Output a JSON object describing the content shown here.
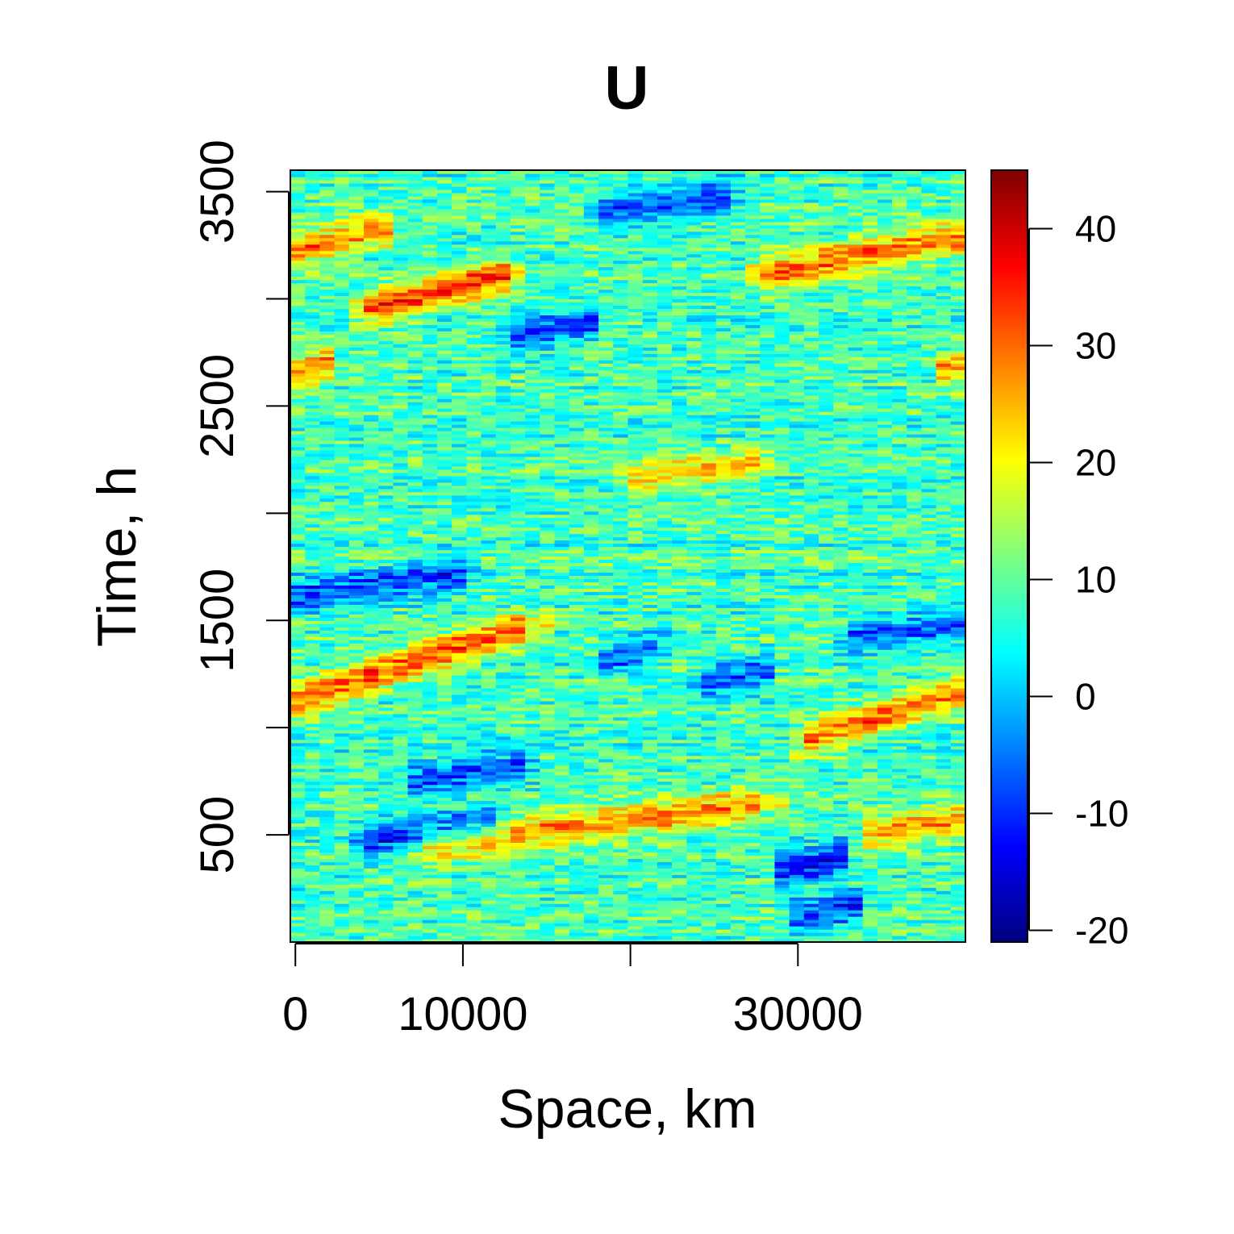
{
  "chart_data": {
    "type": "heatmap",
    "title": "U",
    "xlabel": "Space, km",
    "ylabel": "Time, h",
    "xlim": [
      -300,
      40000
    ],
    "ylim": [
      0,
      3600
    ],
    "x_ticks": [
      0,
      10000,
      20000,
      30000
    ],
    "x_tick_labels": [
      "0",
      "10000",
      "",
      "30000"
    ],
    "y_ticks": [
      500,
      1000,
      1500,
      2000,
      2500,
      3000,
      3500
    ],
    "y_tick_labels": [
      "500",
      "",
      "1500",
      "",
      "2500",
      "",
      "3500"
    ],
    "colorbar": {
      "range": [
        -21,
        45
      ],
      "ticks": [
        -20,
        -10,
        0,
        10,
        20,
        30,
        40
      ],
      "tick_labels": [
        "-20",
        "-10",
        "0",
        "10",
        "20",
        "30",
        "40"
      ],
      "colormap": [
        "#00007f",
        "#0000ff",
        "#007fff",
        "#00ffff",
        "#7fff7f",
        "#ffff00",
        "#ff7f00",
        "#ff0000",
        "#7f0000"
      ]
    },
    "grid": false,
    "legend": "right colorbar",
    "background_value": 8,
    "features": [
      {
        "kind": "red band",
        "x_start": 0,
        "t_start": 1130,
        "x_end": 14000,
        "t_end": 1480,
        "value": 34
      },
      {
        "kind": "red band",
        "x_start": 4000,
        "t_start": 2950,
        "x_end": 13000,
        "t_end": 3120,
        "value": 36
      },
      {
        "kind": "orange band",
        "x_start": 0,
        "t_start": 3220,
        "x_end": 5500,
        "t_end": 3330,
        "value": 30
      },
      {
        "kind": "orange band",
        "x_start": 28000,
        "t_start": 3120,
        "x_end": 40000,
        "t_end": 3300,
        "value": 32
      },
      {
        "kind": "orange band",
        "x_start": 30000,
        "t_start": 930,
        "x_end": 40000,
        "t_end": 1180,
        "value": 32
      },
      {
        "kind": "orange band",
        "x_start": 0,
        "t_start": 2650,
        "x_end": 2000,
        "t_end": 2700,
        "value": 30
      },
      {
        "kind": "orange band",
        "x_start": 38500,
        "t_start": 2650,
        "x_end": 40000,
        "t_end": 2700,
        "value": 29
      },
      {
        "kind": "orange streak",
        "x_start": 8000,
        "t_start": 450,
        "x_end": 28000,
        "t_end": 650,
        "value": 29
      },
      {
        "kind": "orange streak",
        "x_start": 34000,
        "t_start": 500,
        "x_end": 40000,
        "t_end": 580,
        "value": 27
      },
      {
        "kind": "orange streak",
        "x_start": 20000,
        "t_start": 2150,
        "x_end": 28000,
        "t_end": 2250,
        "value": 25
      },
      {
        "kind": "blue patch",
        "x_start": 4000,
        "t_start": 470,
        "x_end": 12000,
        "t_end": 570,
        "value": -12
      },
      {
        "kind": "blue patch",
        "x_start": 0,
        "t_start": 1620,
        "x_end": 10000,
        "t_end": 1720,
        "value": -10
      },
      {
        "kind": "blue patch",
        "x_start": 7000,
        "t_start": 750,
        "x_end": 14000,
        "t_end": 830,
        "value": -9
      },
      {
        "kind": "blue patch",
        "x_start": 18000,
        "t_start": 3400,
        "x_end": 26000,
        "t_end": 3480,
        "value": -11
      },
      {
        "kind": "blue patch",
        "x_start": 12500,
        "t_start": 2830,
        "x_end": 18000,
        "t_end": 2890,
        "value": -10
      },
      {
        "kind": "blue patch",
        "x_start": 29000,
        "t_start": 340,
        "x_end": 33000,
        "t_end": 400,
        "value": -14
      },
      {
        "kind": "blue patch",
        "x_start": 29500,
        "t_start": 110,
        "x_end": 33500,
        "t_end": 170,
        "value": -11
      },
      {
        "kind": "blue patch",
        "x_start": 18000,
        "t_start": 1300,
        "x_end": 22000,
        "t_end": 1400,
        "value": -8
      },
      {
        "kind": "blue patch",
        "x_start": 33000,
        "t_start": 1420,
        "x_end": 40000,
        "t_end": 1480,
        "value": -9
      },
      {
        "kind": "blue patch",
        "x_start": 24000,
        "t_start": 1200,
        "x_end": 28500,
        "t_end": 1270,
        "value": -8
      }
    ]
  }
}
